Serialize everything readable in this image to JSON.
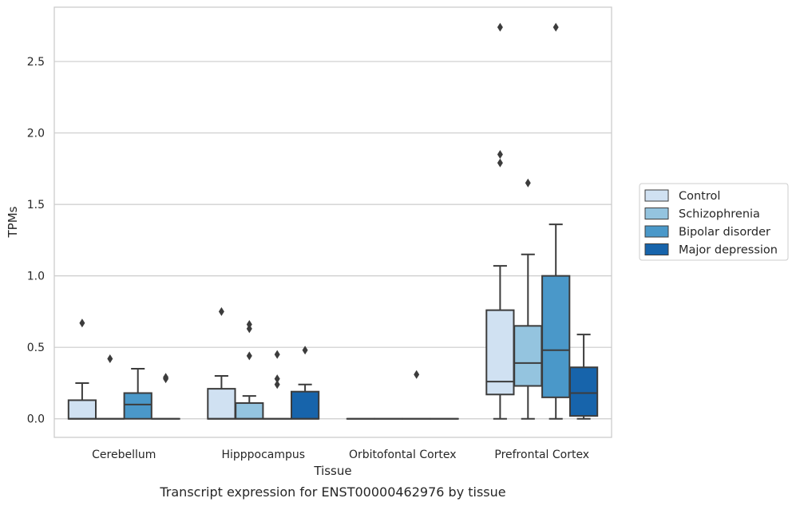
{
  "caption": "Transcript expression for ENST00000462976 by tissue",
  "chart_data": {
    "type": "box",
    "xlabel": "Tissue",
    "ylabel": "TPMs",
    "ylim": [
      -0.13,
      2.88
    ],
    "yticks": [
      0.0,
      0.5,
      1.0,
      1.5,
      2.0,
      2.5
    ],
    "ytick_labels": [
      "0.0",
      "0.5",
      "1.0",
      "1.5",
      "2.0",
      "2.5"
    ],
    "grid": true,
    "legend_position": "right",
    "categories": [
      "Cerebellum",
      "Hipppocampus",
      "Orbitofontal Cortex",
      "Prefrontal Cortex"
    ],
    "series": [
      {
        "name": "Control",
        "color": "#d0e1f2",
        "boxes": [
          {
            "q1": 0.0,
            "median": 0.0,
            "q3": 0.13,
            "whislo": 0.0,
            "whishi": 0.25,
            "fliers": [
              0.67
            ]
          },
          {
            "q1": 0.0,
            "median": 0.0,
            "q3": 0.21,
            "whislo": 0.0,
            "whishi": 0.3,
            "fliers": [
              0.75
            ]
          },
          {
            "q1": 0.0,
            "median": 0.0,
            "q3": 0.0,
            "whislo": 0.0,
            "whishi": 0.0,
            "fliers": []
          },
          {
            "q1": 0.17,
            "median": 0.26,
            "q3": 0.76,
            "whislo": 0.0,
            "whishi": 1.07,
            "fliers": [
              1.79,
              1.85,
              2.74
            ]
          }
        ]
      },
      {
        "name": "Schizophrenia",
        "color": "#94c4df",
        "boxes": [
          {
            "q1": 0.0,
            "median": 0.0,
            "q3": 0.0,
            "whislo": 0.0,
            "whishi": 0.0,
            "fliers": [
              0.42
            ]
          },
          {
            "q1": 0.0,
            "median": 0.0,
            "q3": 0.11,
            "whislo": 0.0,
            "whishi": 0.16,
            "fliers": [
              0.44,
              0.63,
              0.66
            ]
          },
          {
            "q1": 0.0,
            "median": 0.0,
            "q3": 0.0,
            "whislo": 0.0,
            "whishi": 0.0,
            "fliers": []
          },
          {
            "q1": 0.23,
            "median": 0.39,
            "q3": 0.65,
            "whislo": 0.0,
            "whishi": 1.15,
            "fliers": [
              1.65
            ]
          }
        ]
      },
      {
        "name": "Bipolar disorder",
        "color": "#4a98c9",
        "boxes": [
          {
            "q1": 0.0,
            "median": 0.1,
            "q3": 0.18,
            "whislo": 0.0,
            "whishi": 0.35,
            "fliers": []
          },
          {
            "q1": 0.0,
            "median": 0.0,
            "q3": 0.0,
            "whislo": 0.0,
            "whishi": 0.0,
            "fliers": [
              0.24,
              0.28,
              0.45
            ]
          },
          {
            "q1": 0.0,
            "median": 0.0,
            "q3": 0.0,
            "whislo": 0.0,
            "whishi": 0.0,
            "fliers": [
              0.31
            ]
          },
          {
            "q1": 0.15,
            "median": 0.48,
            "q3": 1.0,
            "whislo": 0.0,
            "whishi": 1.36,
            "fliers": [
              2.74
            ]
          }
        ]
      },
      {
        "name": "Major depression",
        "color": "#1764ab",
        "boxes": [
          {
            "q1": 0.0,
            "median": 0.0,
            "q3": 0.0,
            "whislo": 0.0,
            "whishi": 0.0,
            "fliers": [
              0.28,
              0.29
            ]
          },
          {
            "q1": 0.0,
            "median": 0.0,
            "q3": 0.19,
            "whislo": 0.0,
            "whishi": 0.24,
            "fliers": [
              0.48
            ]
          },
          {
            "q1": 0.0,
            "median": 0.0,
            "q3": 0.0,
            "whislo": 0.0,
            "whishi": 0.0,
            "fliers": []
          },
          {
            "q1": 0.02,
            "median": 0.18,
            "q3": 0.36,
            "whislo": 0.0,
            "whishi": 0.59,
            "fliers": []
          }
        ]
      }
    ]
  }
}
